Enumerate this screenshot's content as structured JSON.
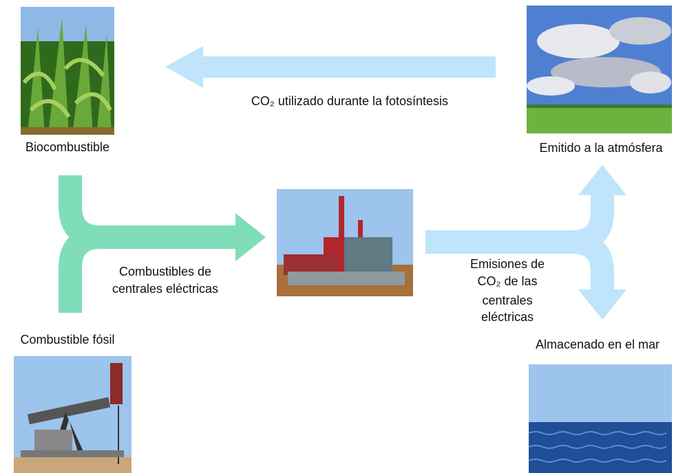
{
  "nodes": [
    {
      "label": "Biocombustible"
    },
    {
      "label": "Emitido a la atmósfera"
    },
    {
      "label": "Combustible fósil"
    },
    {
      "label": "Almacenado en el mar"
    }
  ],
  "edges": [
    {
      "label_lines": [
        "CO₂ utilizado durante la fotosíntesis"
      ]
    },
    {
      "label_lines": [
        "Combustibles de",
        "centrales eléctricas"
      ]
    },
    {
      "label_lines": [
        "Emisiones de",
        "CO₂ de las",
        "centrales",
        "eléctricas"
      ]
    }
  ]
}
